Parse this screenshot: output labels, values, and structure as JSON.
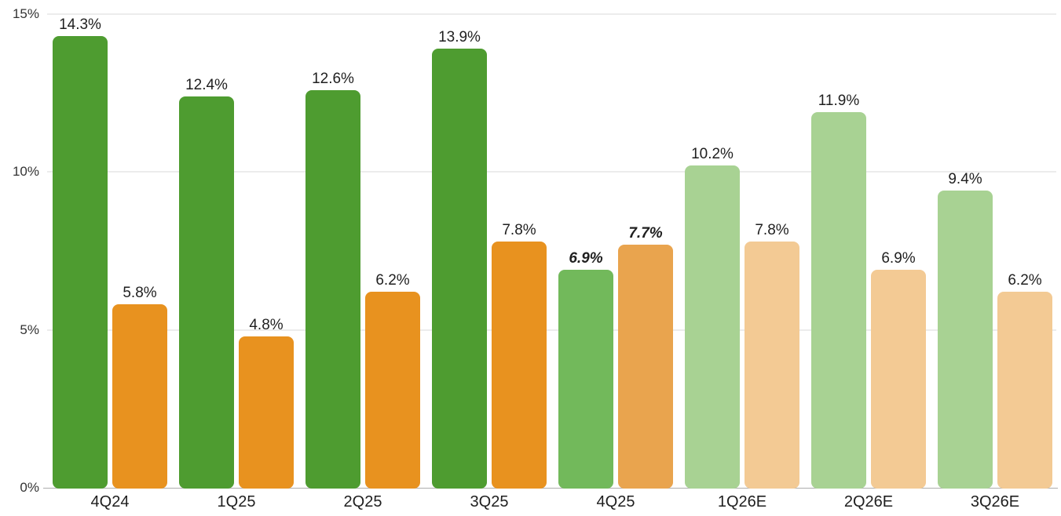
{
  "chart_data": {
    "type": "bar",
    "title": "",
    "xlabel": "",
    "ylabel": "",
    "categories": [
      "4Q24",
      "1Q25",
      "2Q25",
      "3Q25",
      "4Q25",
      "1Q26E",
      "2Q26E",
      "3Q26E"
    ],
    "series": [
      {
        "name": "green",
        "values": [
          14.3,
          12.4,
          12.6,
          13.9,
          6.9,
          10.2,
          11.9,
          9.4
        ],
        "labels": [
          "14.3%",
          "12.4%",
          "12.6%",
          "13.9%",
          "6.9%",
          "10.2%",
          "11.9%",
          "9.4%"
        ],
        "colors": [
          "#4e9c30",
          "#4e9c30",
          "#4e9c30",
          "#4e9c30",
          "#72b95b",
          "#a8d293",
          "#a8d293",
          "#a8d293"
        ]
      },
      {
        "name": "orange",
        "values": [
          5.8,
          4.8,
          6.2,
          7.8,
          7.7,
          7.8,
          6.9,
          6.2
        ],
        "labels": [
          "5.8%",
          "4.8%",
          "6.2%",
          "7.8%",
          "7.7%",
          "7.8%",
          "6.9%",
          "6.2%"
        ],
        "colors": [
          "#e8921f",
          "#e8921f",
          "#e8921f",
          "#e8921f",
          "#e9a44e",
          "#f3ca94",
          "#f3ca94",
          "#f3ca94"
        ]
      }
    ],
    "emphasized_category_index": 4,
    "y_axis": {
      "ticks": [
        "0%",
        "5%",
        "10%",
        "15%"
      ],
      "tick_values": [
        0,
        5,
        10,
        15
      ],
      "ylim": [
        0,
        15
      ]
    },
    "grid": "horizontal",
    "legend": "none",
    "style": {
      "gridline_color": "#ececec",
      "axisline_color": "#adadad",
      "value_label_color": "#1f1f1f",
      "x_tick_color": "#1f1f1f",
      "y_tick_color": "#333333"
    }
  }
}
